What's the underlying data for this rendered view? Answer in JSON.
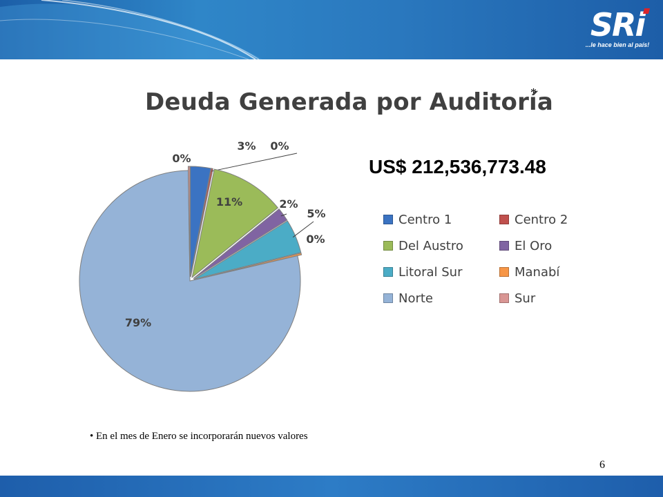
{
  "header": {
    "logo_text": "SRi",
    "logo_tagline": "...le hace bien al país!"
  },
  "slide": {
    "asterisk": "*",
    "total_amount": "US$ 212,536,773.48",
    "bullet_note": "• En el  mes de Enero se incorporarán nuevos valores",
    "page_number": "6"
  },
  "chart_data": {
    "type": "pie",
    "title": "Deuda Generada por Auditoría",
    "categories": [
      "Centro 1",
      "Centro 2",
      "Del Austro",
      "El Oro",
      "Litoral Sur",
      "Manabí",
      "Norte",
      "Sur"
    ],
    "values": [
      3,
      0,
      11,
      2,
      5,
      0,
      79,
      0
    ],
    "labels": [
      "3%",
      "0%",
      "11%",
      "2%",
      "5%",
      "0%",
      "79%",
      "0%"
    ],
    "colors": [
      "#3b73c2",
      "#c0504d",
      "#9bbb59",
      "#8064a2",
      "#4bacc6",
      "#f79646",
      "#95b3d7",
      "#d99694"
    ],
    "legend_position": "right"
  }
}
